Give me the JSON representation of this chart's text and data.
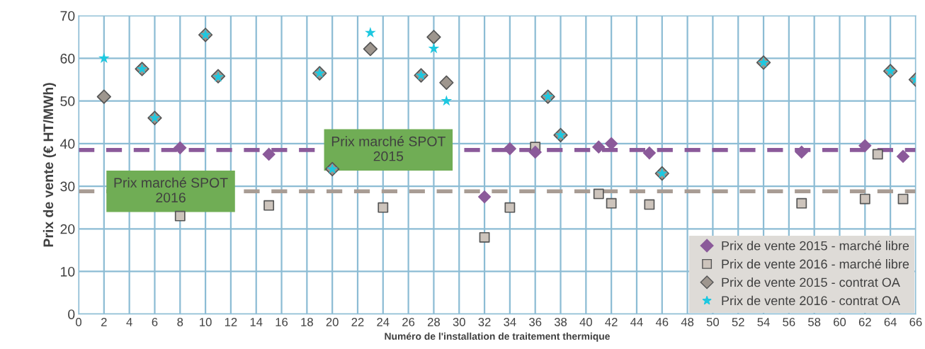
{
  "chart_data": {
    "type": "scatter",
    "xlabel": "Numéro de l'installation de traitement thermique",
    "ylabel": "Prix de vente (€ HT/MWh)",
    "xlim": [
      0,
      66
    ],
    "xticks": [
      0,
      2,
      4,
      6,
      8,
      10,
      12,
      14,
      16,
      18,
      20,
      22,
      24,
      26,
      28,
      30,
      32,
      34,
      36,
      38,
      40,
      42,
      44,
      46,
      48,
      50,
      52,
      54,
      56,
      58,
      60,
      62,
      64,
      66
    ],
    "ylim": [
      0,
      70
    ],
    "yticks": [
      0,
      10,
      20,
      30,
      40,
      50,
      60,
      70
    ],
    "grid": true,
    "legend": "bottom right",
    "series": [
      {
        "name": "Prix de vente 2015 - marché libre",
        "color": "#8b5a9a",
        "marker": "diamond",
        "x": [
          8,
          15,
          32,
          34,
          36,
          41,
          42,
          45,
          57,
          62,
          65
        ],
        "values": [
          39,
          37.5,
          27.5,
          38.8,
          38,
          39.2,
          40,
          37.8,
          38,
          39.5,
          37
        ]
      },
      {
        "name": "Prix de vente 2016 - marché libre",
        "color": "#cdc4bc",
        "marker": "square",
        "x": [
          8,
          15,
          24,
          32,
          34,
          36,
          41,
          42,
          45,
          57,
          62,
          63,
          65
        ],
        "values": [
          23,
          25.5,
          25,
          18,
          25,
          39.2,
          28.2,
          26,
          25.7,
          26,
          27,
          37.5,
          27
        ]
      },
      {
        "name": "Prix de vente 2015 - contrat OA",
        "color": "#9e968e",
        "marker": "diamond",
        "x": [
          2,
          5,
          6,
          10,
          11,
          19,
          20,
          23,
          27,
          28,
          29,
          37,
          38,
          46,
          54,
          64,
          66
        ],
        "values": [
          51,
          57.5,
          46,
          65.5,
          55.8,
          56.5,
          34,
          62.2,
          56,
          65,
          54.3,
          51,
          42,
          33,
          59,
          57,
          55
        ]
      },
      {
        "name": "Prix de vente 2016 - contrat OA",
        "color": "#1ec8e0",
        "marker": "star",
        "x": [
          2,
          5,
          6,
          10,
          11,
          19,
          20,
          23,
          27,
          28,
          29,
          37,
          38,
          46,
          54,
          64,
          66
        ],
        "values": [
          60,
          57.5,
          46,
          65.5,
          55.6,
          56.5,
          34,
          66,
          56,
          62.3,
          50,
          51,
          42,
          33,
          59,
          57,
          55
        ]
      }
    ],
    "ref_lines": [
      {
        "axis": "y",
        "value": 38.5,
        "label": "Prix marché SPOT\n2015",
        "color": "#8b5a9a",
        "line_style": "dashed"
      },
      {
        "axis": "y",
        "value": 28.8,
        "label": "Prix marché SPOT\n2016",
        "color": "#a89c94",
        "line_style": "dashed"
      }
    ]
  }
}
